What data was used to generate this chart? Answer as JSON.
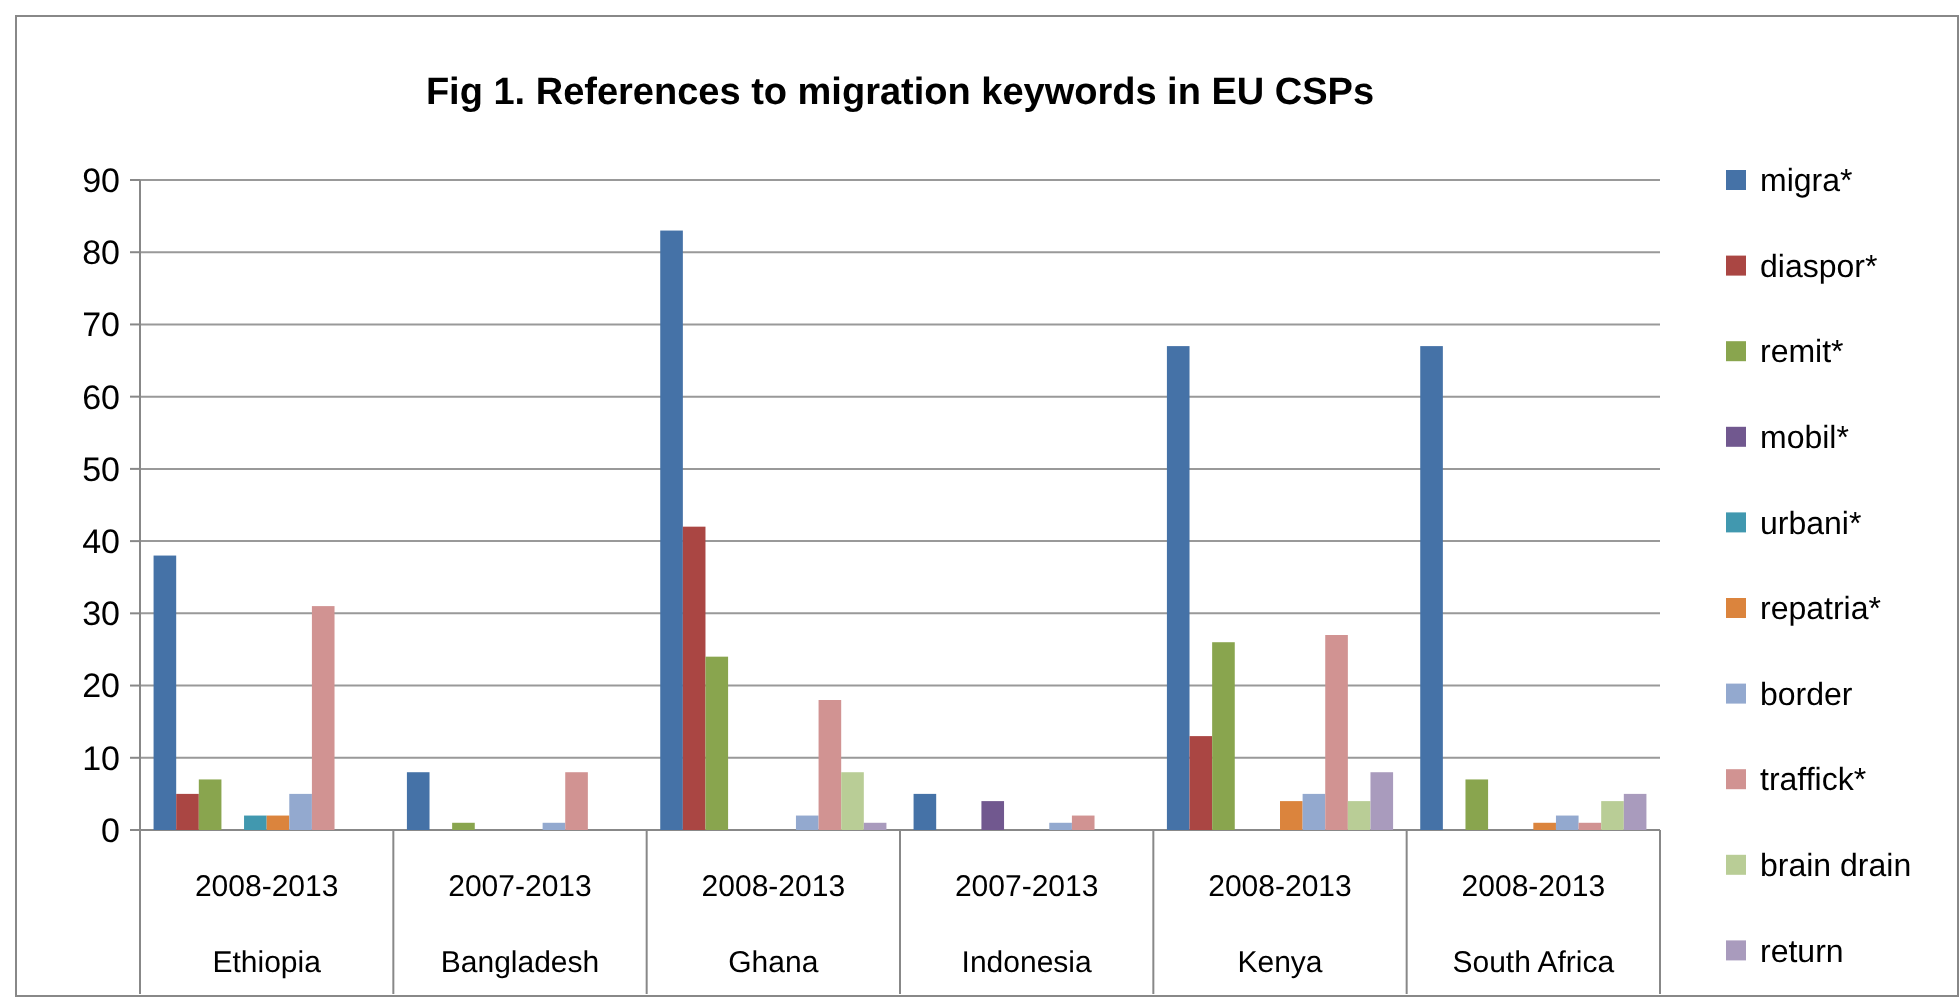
{
  "chart_data": {
    "type": "bar",
    "title": "Fig 1. References to migration keywords in EU CSPs",
    "categories": [
      "2008-2013\nEthiopia",
      "2007-2013\nBangladesh",
      "2008-2013\nGhana",
      "2007-2013\nIndonesia",
      "2008-2013\nKenya",
      "2008-2013\nSouth Africa"
    ],
    "series": [
      {
        "name": "migra*",
        "color": "#4572a7",
        "values": [
          38,
          8,
          83,
          5,
          67,
          67
        ]
      },
      {
        "name": "diaspor*",
        "color": "#aa4643",
        "values": [
          5,
          0,
          42,
          0,
          13,
          0
        ]
      },
      {
        "name": "remit*",
        "color": "#89a54e",
        "values": [
          7,
          1,
          24,
          0,
          26,
          7
        ]
      },
      {
        "name": "mobil*",
        "color": "#71588f",
        "values": [
          0,
          0,
          0,
          4,
          0,
          0
        ]
      },
      {
        "name": "urbani*",
        "color": "#4198af",
        "values": [
          2,
          0,
          0,
          0,
          0,
          0
        ]
      },
      {
        "name": "repatria*",
        "color": "#db843d",
        "values": [
          2,
          0,
          0,
          0,
          4,
          1
        ]
      },
      {
        "name": "border",
        "color": "#93a9cf",
        "values": [
          5,
          1,
          2,
          1,
          5,
          2
        ]
      },
      {
        "name": "traffick*",
        "color": "#d19392",
        "values": [
          31,
          8,
          18,
          2,
          27,
          1
        ]
      },
      {
        "name": "brain drain",
        "color": "#b9cd96",
        "values": [
          0,
          0,
          8,
          0,
          4,
          4
        ]
      },
      {
        "name": "return",
        "color": "#a99bbd",
        "values": [
          0,
          0,
          1,
          0,
          8,
          5
        ]
      }
    ],
    "ylim": [
      0,
      90
    ],
    "yticks": [
      0,
      10,
      20,
      30,
      40,
      50,
      60,
      70,
      80,
      90
    ],
    "grid": "y",
    "legend": "right"
  }
}
